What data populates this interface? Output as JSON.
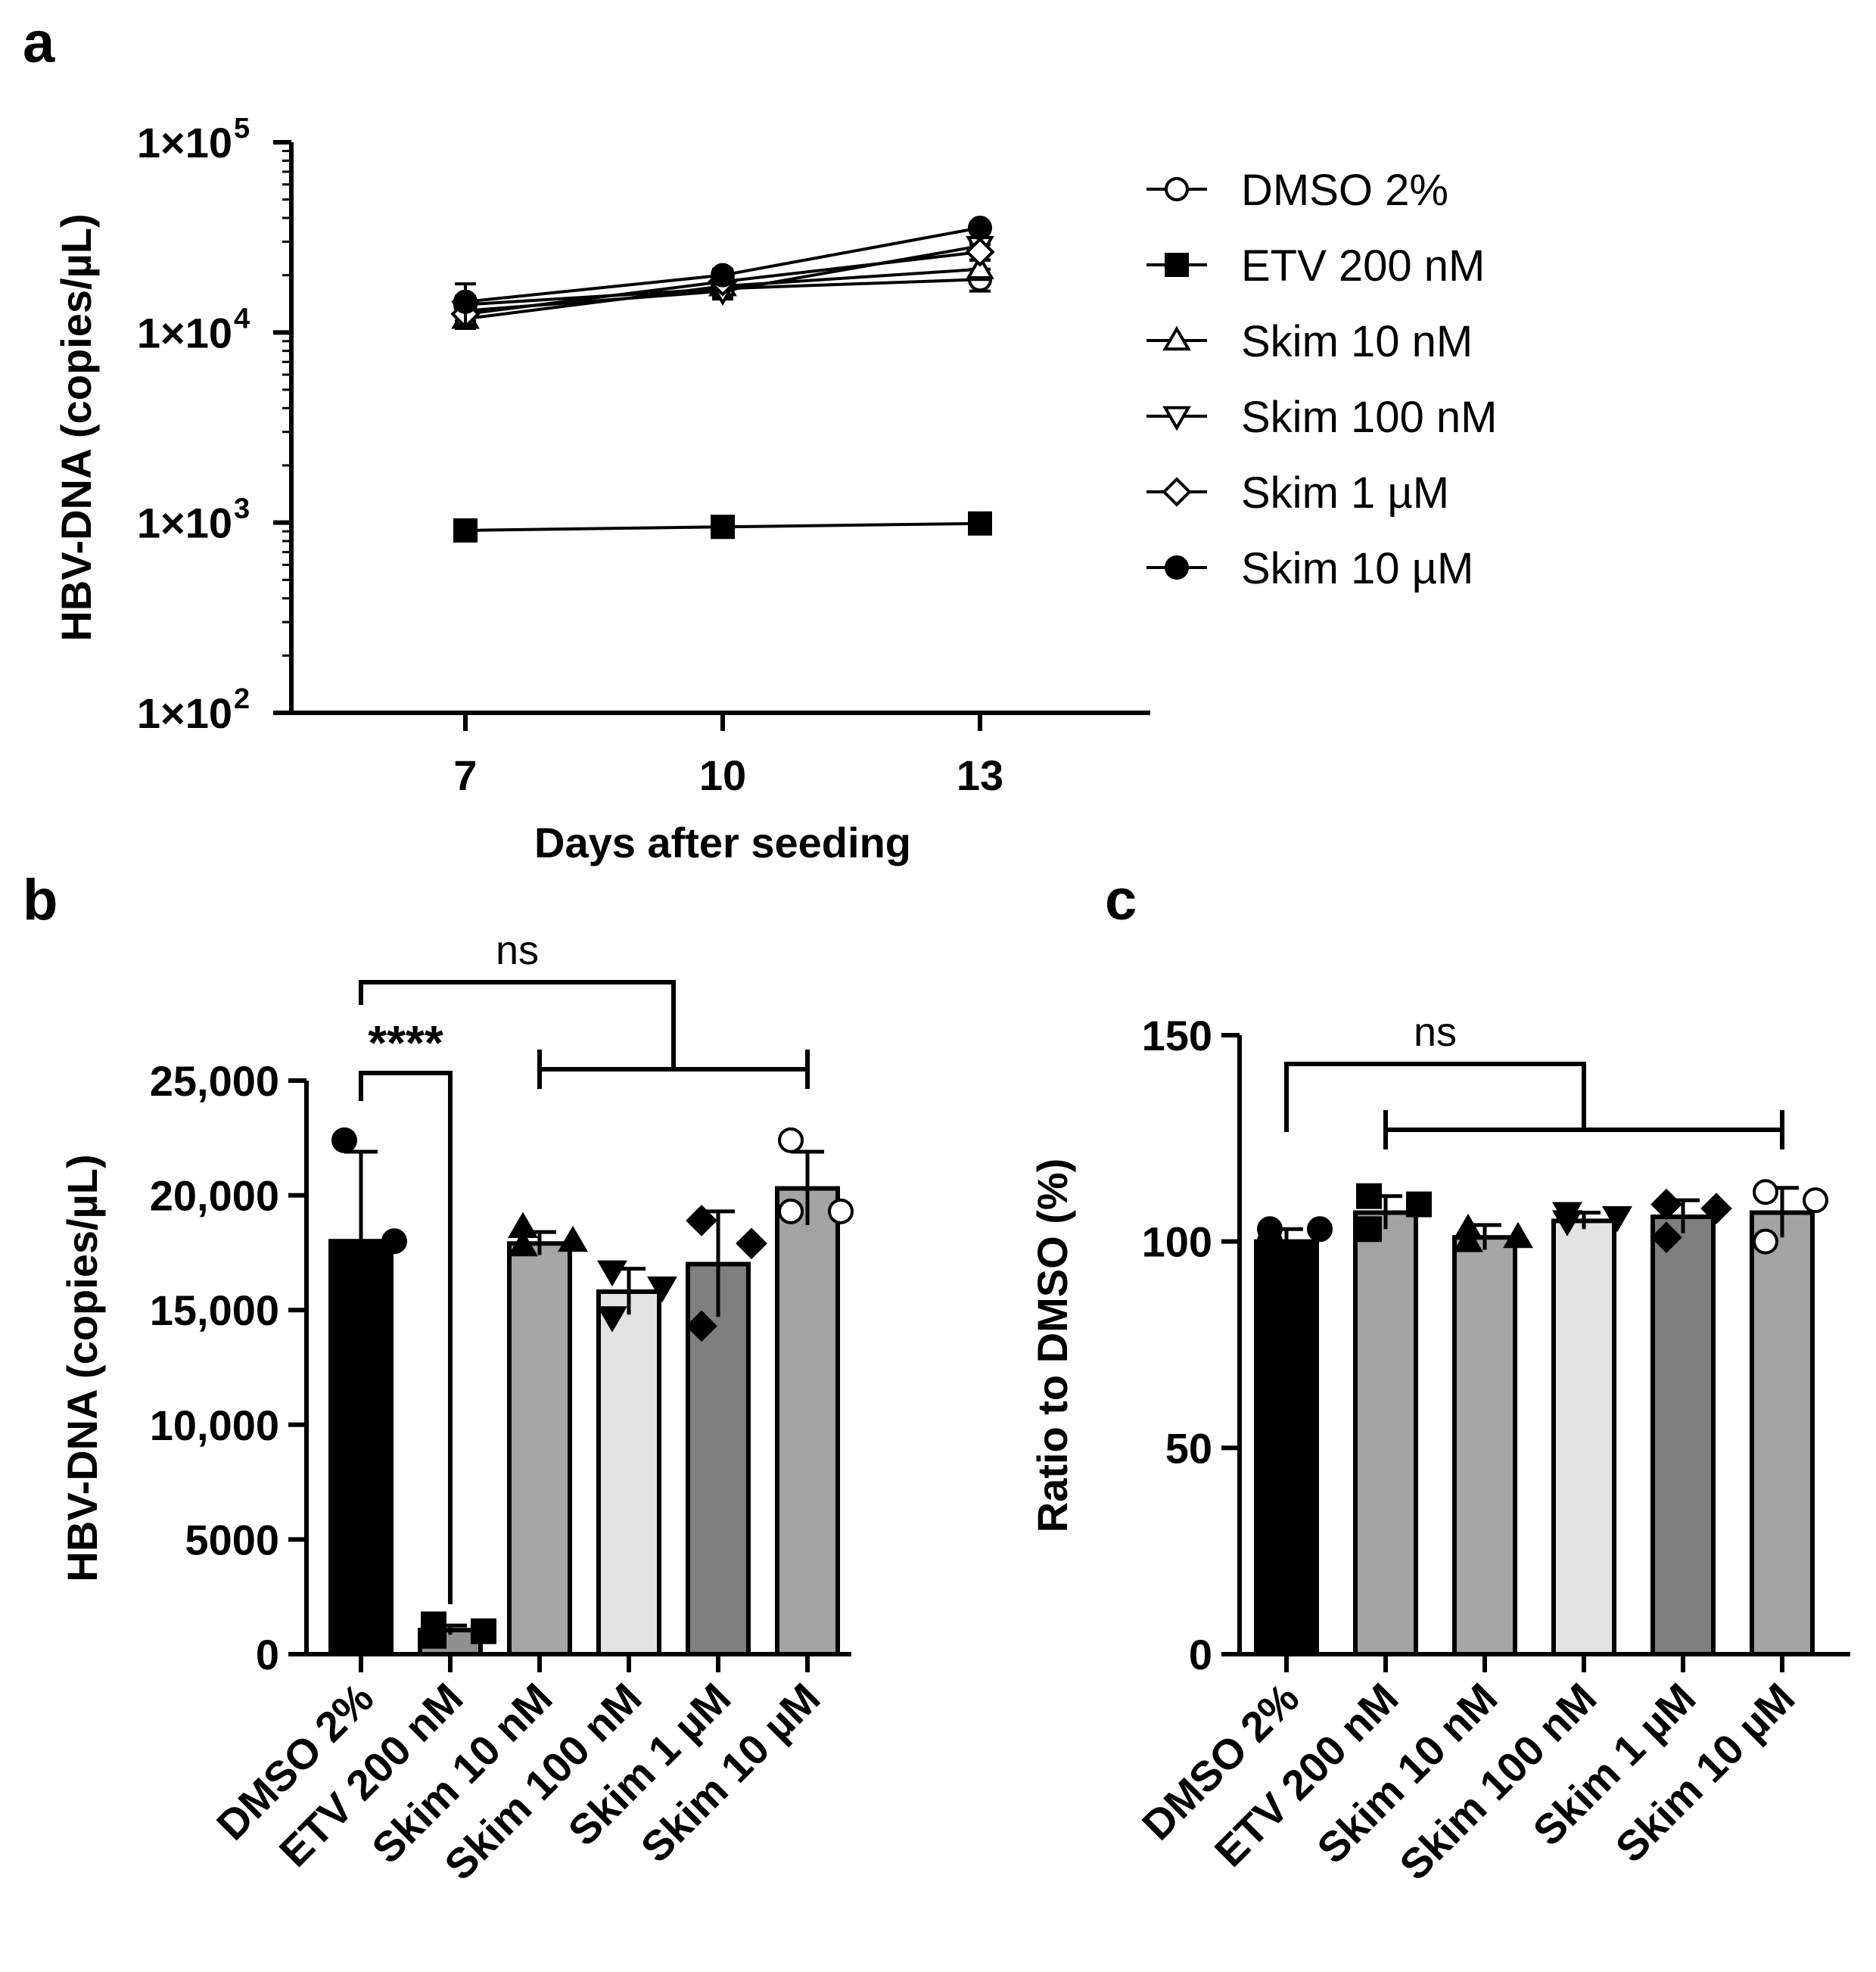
{
  "panels": {
    "a": "a",
    "b": "b",
    "c": "c"
  },
  "chart_data": [
    {
      "id": "a",
      "type": "line",
      "yscale": "log",
      "xlabel": "Days after seeding",
      "ylabel": "HBV-DNA (copies/µL)",
      "x": [
        7,
        10,
        13
      ],
      "xticks": [
        "7",
        "10",
        "13"
      ],
      "xlim": [
        5,
        15
      ],
      "ylim": [
        100,
        100000
      ],
      "yticks": [
        {
          "value": 100000,
          "base": "1×10",
          "exp": "5"
        },
        {
          "value": 10000,
          "base": "1×10",
          "exp": "4"
        },
        {
          "value": 1000,
          "base": "1×10",
          "exp": "3"
        },
        {
          "value": 100,
          "base": "1×10",
          "exp": "2"
        }
      ],
      "legend_position": "right",
      "series": [
        {
          "name": "DMSO 2%",
          "marker": "circle-open",
          "values": [
            14000,
            17000,
            19000
          ],
          "errors": [
            1500,
            1500,
            2500
          ]
        },
        {
          "name": "ETV 200 nM",
          "marker": "square-filled",
          "values": [
            910,
            950,
            990
          ],
          "errors": [
            40,
            40,
            90
          ]
        },
        {
          "name": "Skim 10 nM",
          "marker": "triangle-up-open",
          "values": [
            11800,
            17500,
            21500
          ],
          "errors": [
            1300,
            1500,
            2500
          ]
        },
        {
          "name": "Skim 100 nM",
          "marker": "triangle-down-open",
          "values": [
            13000,
            16500,
            28500
          ],
          "errors": [
            1500,
            1500,
            2500
          ]
        },
        {
          "name": "Skim 1 µM",
          "marker": "diamond-open",
          "values": [
            12500,
            18500,
            26500
          ],
          "errors": [
            1500,
            1500,
            2500
          ]
        },
        {
          "name": "Skim 10 µM",
          "marker": "circle-filled",
          "values": [
            14500,
            20000,
            35500
          ],
          "errors": [
            3500,
            1500,
            2000
          ]
        }
      ]
    },
    {
      "id": "b",
      "type": "bar",
      "ylabel": "HBV-DNA (copies/µL)",
      "ylim": [
        0,
        25000
      ],
      "yticks": [
        {
          "value": 0,
          "label": "0"
        },
        {
          "value": 5000,
          "label": "5000"
        },
        {
          "value": 10000,
          "label": "10,000"
        },
        {
          "value": 15000,
          "label": "15,000"
        },
        {
          "value": 20000,
          "label": "20,000"
        },
        {
          "value": 25000,
          "label": "25,000"
        }
      ],
      "categories": [
        "DMSO 2%",
        "ETV 200 nM",
        "Skim 10 nM",
        "Skim 100 nM",
        "Skim 1 µM",
        "Skim 10 µM"
      ],
      "values": [
        18000,
        1050,
        17900,
        15800,
        17000,
        20300
      ],
      "errors": [
        3900,
        200,
        500,
        1000,
        2300,
        1600
      ],
      "colors": [
        "#000000",
        "#8f8f8f",
        "#a6a6a6",
        "#e3e3e3",
        "#7f7f7f",
        "#a3a3a3"
      ],
      "points": [
        [
          22400,
          18000,
          13700
        ],
        [
          1300,
          1000,
          800
        ],
        [
          18600,
          18000,
          17800
        ],
        [
          16700,
          16000,
          14700
        ],
        [
          18900,
          17900,
          14300
        ],
        [
          22400,
          19300,
          19300
        ]
      ],
      "markers": [
        "circle-filled",
        "square-filled",
        "triangle-up-filled",
        "triangle-down-filled",
        "diamond-filled",
        "circle-open"
      ],
      "annotations": [
        {
          "label": "****",
          "kind": "bracket",
          "from": 0,
          "to": 1
        },
        {
          "label": "ns",
          "kind": "group-bracket",
          "from": 0,
          "group": [
            2,
            5
          ]
        }
      ]
    },
    {
      "id": "c",
      "type": "bar",
      "ylabel": "Ratio to DMSO (%)",
      "ylim": [
        0,
        150
      ],
      "yticks": [
        {
          "value": 0,
          "label": "0"
        },
        {
          "value": 50,
          "label": "50"
        },
        {
          "value": 100,
          "label": "100"
        },
        {
          "value": 150,
          "label": "150"
        }
      ],
      "categories": [
        "DMSO 2%",
        "ETV 200 nM",
        "Skim 10 nM",
        "Skim 100 nM",
        "Skim 1 µM",
        "Skim 10 µM"
      ],
      "values": [
        100,
        107,
        101,
        105,
        106,
        107
      ],
      "errors": [
        3,
        4,
        3,
        2,
        4,
        6
      ],
      "colors": [
        "#000000",
        "#a3a3a3",
        "#a6a6a6",
        "#e3e3e3",
        "#7f7f7f",
        "#a3a3a3"
      ],
      "points": [
        [
          103,
          103,
          100
        ],
        [
          111,
          109,
          103
        ],
        [
          103,
          101,
          100
        ],
        [
          107,
          106,
          105
        ],
        [
          109,
          108,
          101
        ],
        [
          112,
          110,
          100
        ]
      ],
      "markers": [
        "circle-filled",
        "square-filled",
        "triangle-up-filled",
        "triangle-down-filled",
        "diamond-filled",
        "circle-open"
      ],
      "annotations": [
        {
          "label": "ns",
          "kind": "group-bracket",
          "from": 0,
          "group": [
            1,
            5
          ]
        }
      ]
    }
  ]
}
